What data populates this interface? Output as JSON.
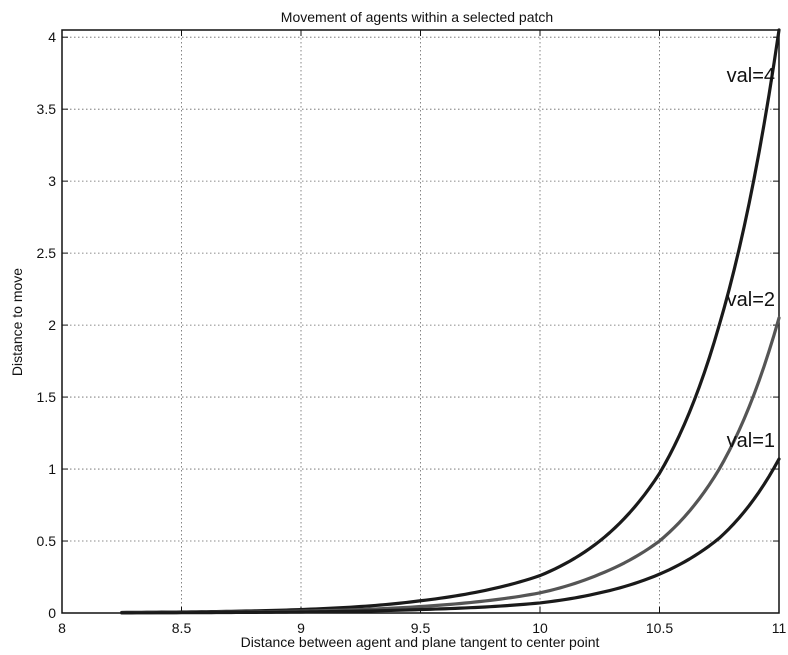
{
  "chart_data": {
    "type": "line",
    "title": "Movement of agents within a selected patch",
    "xlabel": "Distance between agent and plane tangent to center point",
    "ylabel": "Distance to move",
    "xlim": [
      8,
      11
    ],
    "ylim": [
      0,
      4.05
    ],
    "x_ticks": [
      8,
      8.5,
      9,
      9.5,
      10,
      10.5,
      11
    ],
    "y_ticks": [
      0,
      0.5,
      1,
      1.5,
      2,
      2.5,
      3,
      3.5,
      4
    ],
    "grid": true,
    "x": [
      8.25,
      8.5,
      8.75,
      9.0,
      9.25,
      9.5,
      9.75,
      10.0,
      10.25,
      10.5,
      10.75,
      11.0
    ],
    "series": [
      {
        "name": "val=4",
        "color": "#1a1a1a",
        "values": [
          0.004,
          0.007,
          0.013,
          0.024,
          0.045,
          0.085,
          0.15,
          0.26,
          0.5,
          0.97,
          2.0,
          4.05
        ]
      },
      {
        "name": "val=2",
        "color": "#555555",
        "values": [
          0.002,
          0.004,
          0.007,
          0.013,
          0.024,
          0.045,
          0.08,
          0.14,
          0.27,
          0.5,
          1.0,
          2.05
        ]
      },
      {
        "name": "val=1",
        "color": "#1a1a1a",
        "values": [
          0.001,
          0.002,
          0.004,
          0.007,
          0.013,
          0.024,
          0.04,
          0.07,
          0.14,
          0.27,
          0.52,
          1.07
        ]
      }
    ]
  }
}
